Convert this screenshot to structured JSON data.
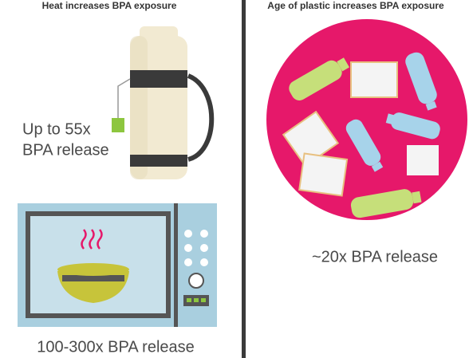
{
  "left_panel": {
    "title": "Heat increases BPA exposure",
    "thermos_caption": [
      "Up to 55x",
      "BPA release"
    ],
    "microwave_caption": "100-300x BPA release"
  },
  "right_panel": {
    "title": "Age of plastic increases BPA exposure",
    "caption": "~20x BPA release"
  }
}
